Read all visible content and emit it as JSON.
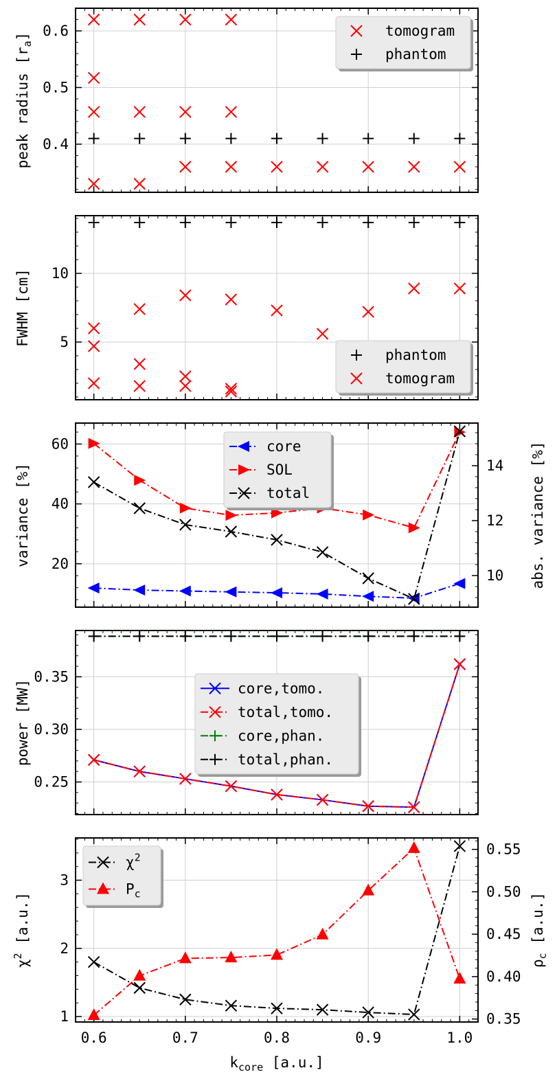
{
  "shared_x": {
    "ticks": [
      "0.6",
      "0.7",
      "0.8",
      "0.9",
      "1.0"
    ],
    "label_main": "k",
    "label_sub": "core",
    "label_tail": " [a.u.]"
  },
  "chart_data": [
    {
      "type": "scatter",
      "ylabel_main": "peak radius [r",
      "ylabel_sub": "a",
      "ylabel_tail": "]",
      "xlim": [
        0.58,
        1.02
      ],
      "ylim": [
        0.315,
        0.64
      ],
      "yticks": [
        "0.4",
        "0.5",
        "0.6"
      ],
      "legend": {
        "placement": "top-right"
      },
      "series": [
        {
          "name": "tomogram",
          "marker": "x",
          "color": "#ff0000",
          "points": [
            [
              0.6,
              0.62
            ],
            [
              0.65,
              0.62
            ],
            [
              0.7,
              0.62
            ],
            [
              0.75,
              0.62
            ],
            [
              0.6,
              0.517
            ],
            [
              0.6,
              0.457
            ],
            [
              0.65,
              0.457
            ],
            [
              0.7,
              0.457
            ],
            [
              0.75,
              0.457
            ],
            [
              0.7,
              0.36
            ],
            [
              0.75,
              0.36
            ],
            [
              0.8,
              0.36
            ],
            [
              0.85,
              0.36
            ],
            [
              0.9,
              0.36
            ],
            [
              0.95,
              0.36
            ],
            [
              1.0,
              0.36
            ],
            [
              0.6,
              0.33
            ],
            [
              0.65,
              0.33
            ]
          ]
        },
        {
          "name": "phantom",
          "marker": "+",
          "color": "#000000",
          "points": [
            [
              0.6,
              0.41
            ],
            [
              0.65,
              0.41
            ],
            [
              0.7,
              0.41
            ],
            [
              0.75,
              0.41
            ],
            [
              0.8,
              0.41
            ],
            [
              0.85,
              0.41
            ],
            [
              0.9,
              0.41
            ],
            [
              0.95,
              0.41
            ],
            [
              1.0,
              0.41
            ]
          ]
        }
      ]
    },
    {
      "type": "scatter",
      "ylabel_main": "FWHM [cm]",
      "xlim": [
        0.58,
        1.02
      ],
      "ylim": [
        0.8,
        14.2
      ],
      "yticks": [
        "5",
        "10"
      ],
      "legend": {
        "placement": "bottom-right"
      },
      "series": [
        {
          "name": "phantom",
          "marker": "+",
          "color": "#000000",
          "points": [
            [
              0.6,
              13.7
            ],
            [
              0.65,
              13.7
            ],
            [
              0.7,
              13.7
            ],
            [
              0.75,
              13.7
            ],
            [
              0.8,
              13.7
            ],
            [
              0.85,
              13.7
            ],
            [
              0.9,
              13.7
            ],
            [
              0.95,
              13.7
            ],
            [
              1.0,
              13.7
            ]
          ]
        },
        {
          "name": "tomogram",
          "marker": "x",
          "color": "#ff0000",
          "points": [
            [
              0.6,
              6.0
            ],
            [
              0.6,
              4.7
            ],
            [
              0.6,
              2.0
            ],
            [
              0.65,
              7.4
            ],
            [
              0.65,
              3.4
            ],
            [
              0.65,
              1.8
            ],
            [
              0.7,
              8.4
            ],
            [
              0.7,
              2.5
            ],
            [
              0.7,
              1.8
            ],
            [
              0.75,
              8.1
            ],
            [
              0.75,
              1.6
            ],
            [
              0.75,
              1.4
            ],
            [
              0.8,
              7.3
            ],
            [
              0.85,
              5.6
            ],
            [
              0.9,
              7.2
            ],
            [
              0.95,
              8.9
            ],
            [
              1.0,
              8.9
            ]
          ]
        }
      ]
    },
    {
      "type": "line",
      "ylabel_main": "variance [%]",
      "ylabel2_main": "abs. variance [%]",
      "x": [
        0.6,
        0.65,
        0.7,
        0.75,
        0.8,
        0.85,
        0.9,
        0.95,
        1.0
      ],
      "xlim": [
        0.58,
        1.02
      ],
      "ylim": [
        5.5,
        67
      ],
      "y2lim": [
        8.85,
        15.55
      ],
      "yticks": [
        "20",
        "40",
        "60"
      ],
      "y2ticks": [
        "10",
        "12",
        "14"
      ],
      "legend": {
        "placement": "top-center"
      },
      "series": [
        {
          "name": "core",
          "axis": "left",
          "marker": "tri-left",
          "color": "#0000ff",
          "values": [
            11.9,
            11.2,
            10.9,
            10.6,
            10.3,
            9.9,
            9.1,
            8.5,
            13.4
          ]
        },
        {
          "name": "SOL",
          "axis": "left",
          "marker": "tri-right",
          "color": "#ff0000",
          "values": [
            60.2,
            47.9,
            38.6,
            36.2,
            37.0,
            38.6,
            36.3,
            32.0,
            64.0
          ]
        },
        {
          "name": "total",
          "axis": "right",
          "marker": "x",
          "color": "#000000",
          "values": [
            13.4,
            12.45,
            11.85,
            11.6,
            11.3,
            10.85,
            9.9,
            9.15,
            15.25
          ]
        }
      ]
    },
    {
      "type": "line",
      "ylabel_main": "power [MW]",
      "x": [
        0.6,
        0.65,
        0.7,
        0.75,
        0.8,
        0.85,
        0.9,
        0.95,
        1.0
      ],
      "xlim": [
        0.58,
        1.02
      ],
      "ylim": [
        0.219,
        0.394
      ],
      "yticks": [
        "0.25",
        "0.30",
        "0.35"
      ],
      "legend": {
        "placement": "center"
      },
      "series": [
        {
          "name": "core,tomo.",
          "marker": "x",
          "color": "#0000ff",
          "dash": "solid",
          "values": [
            0.271,
            0.26,
            0.253,
            0.246,
            0.238,
            0.233,
            0.227,
            0.226,
            0.362
          ]
        },
        {
          "name": "total,tomo.",
          "marker": "x",
          "color": "#ff0000",
          "dash": "dashdot",
          "values": [
            0.271,
            0.26,
            0.253,
            0.246,
            0.238,
            0.233,
            0.227,
            0.226,
            0.362
          ]
        },
        {
          "name": "core,phan.",
          "marker": "+",
          "color": "#008000",
          "dash": "dashdot",
          "values": [
            0.3885,
            0.3885,
            0.3885,
            0.3885,
            0.3885,
            0.3885,
            0.3885,
            0.3885,
            0.3885
          ]
        },
        {
          "name": "total,phan.",
          "marker": "+",
          "color": "#000000",
          "dash": "dashdot",
          "values": [
            0.3885,
            0.3885,
            0.3885,
            0.3885,
            0.3885,
            0.3885,
            0.3885,
            0.3885,
            0.3885
          ]
        }
      ]
    },
    {
      "type": "line",
      "ylabel_main": "χ",
      "ylabel_sup": "2",
      "ylabel_tail": " [a.u.]",
      "ylabel2_main": "ρ",
      "ylabel2_sub": "c",
      "ylabel2_tail": " [a.u.]",
      "x": [
        0.6,
        0.65,
        0.7,
        0.75,
        0.8,
        0.85,
        0.9,
        0.95,
        1.0
      ],
      "xlim": [
        0.58,
        1.02
      ],
      "ylim": [
        0.92,
        3.62
      ],
      "y2lim": [
        0.3465,
        0.5635
      ],
      "yticks": [
        "1",
        "2",
        "3"
      ],
      "y2ticks": [
        "0.35",
        "0.40",
        "0.45",
        "0.50",
        "0.55"
      ],
      "legend": {
        "placement": "top-left"
      },
      "series": [
        {
          "name": "χ",
          "name_sup": "2",
          "axis": "left",
          "marker": "x",
          "color": "#000000",
          "values": [
            1.8,
            1.42,
            1.25,
            1.16,
            1.12,
            1.1,
            1.06,
            1.03,
            3.5
          ]
        },
        {
          "name": "P",
          "name_sub": "c",
          "axis": "right",
          "marker": "tri-up",
          "color": "#ff0000",
          "values": [
            0.3545,
            0.401,
            0.4215,
            0.4225,
            0.4255,
            0.4495,
            0.5015,
            0.5515,
            0.3975
          ]
        }
      ]
    }
  ]
}
